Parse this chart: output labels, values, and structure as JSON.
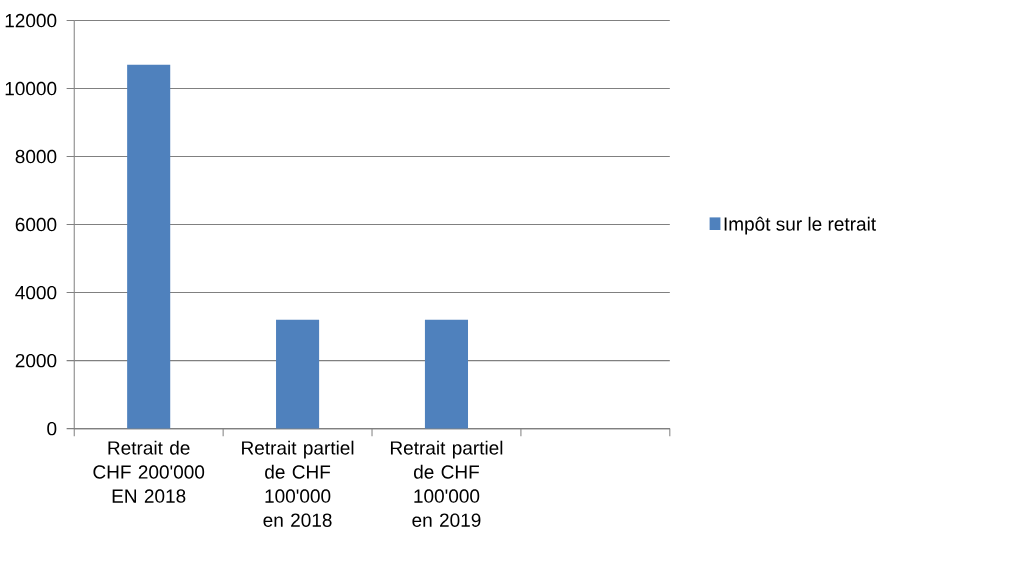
{
  "chart_data": {
    "type": "bar",
    "categories": [
      "Retrait de CHF 200'000 EN 2018",
      "Retrait partiel de CHF 100'000 en 2018",
      "Retrait partiel de CHF 100'000 en 2019",
      null
    ],
    "series": [
      {
        "name": "Impôt sur le retrait",
        "color": "#4f81bd",
        "values": [
          10700,
          3200,
          3200,
          null
        ]
      }
    ],
    "ylim": [
      0,
      12000
    ],
    "yticks": [
      0,
      2000,
      4000,
      6000,
      8000,
      10000,
      12000
    ],
    "grid": "y",
    "legend": "right"
  }
}
